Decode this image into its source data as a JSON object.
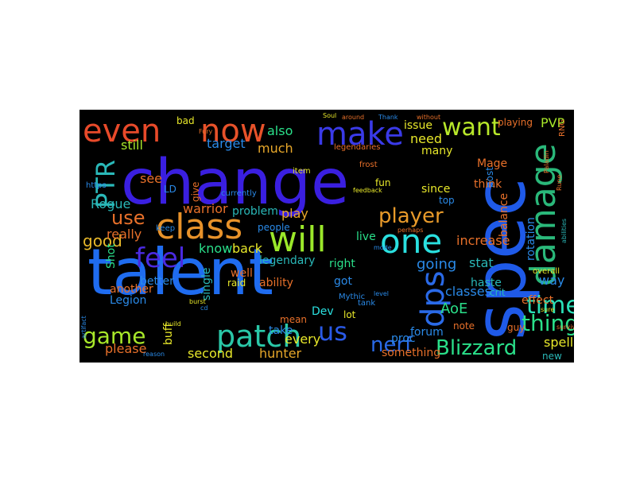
{
  "colors": {
    "canvas_background": "#000000",
    "page_background": "#ffffff"
  },
  "words": [
    {
      "text": "change",
      "color": "#3a1fe0"
    },
    {
      "text": "talent",
      "color": "#1f6cf0"
    },
    {
      "text": "spec",
      "color": "#1f5ae8"
    },
    {
      "text": "class",
      "color": "#e8922a"
    },
    {
      "text": "will",
      "color": "#9be82a"
    },
    {
      "text": "one",
      "color": "#2ae0e0"
    },
    {
      "text": "damage",
      "color": "#2ab87a"
    },
    {
      "text": "even",
      "color": "#e84a2a"
    },
    {
      "text": "now",
      "color": "#e8522a"
    },
    {
      "text": "make",
      "color": "#3a3ae8"
    },
    {
      "text": "patch",
      "color": "#2ac8a8"
    },
    {
      "text": "feel",
      "color": "#4a2ae0"
    },
    {
      "text": "dps",
      "color": "#2a6ae8"
    },
    {
      "text": "want",
      "color": "#b8e82a"
    },
    {
      "text": "player",
      "color": "#e89a2a"
    },
    {
      "text": "PTR",
      "color": "#2ab8b8"
    },
    {
      "text": "time",
      "color": "#2ae0b8"
    },
    {
      "text": "game",
      "color": "#a8e82a"
    },
    {
      "text": "us",
      "color": "#2a5ae8"
    },
    {
      "text": "thing",
      "color": "#2ae08a"
    },
    {
      "text": "Blizzard",
      "color": "#2ae08a"
    },
    {
      "text": "nerf",
      "color": "#2a6ae8"
    },
    {
      "text": "use",
      "color": "#e8702a"
    },
    {
      "text": "good",
      "color": "#e8b82a"
    },
    {
      "text": "PVP",
      "color": "#a8e82a"
    },
    {
      "text": "Rogue",
      "color": "#2ab8b8"
    },
    {
      "text": "warrior",
      "color": "#e8702a"
    },
    {
      "text": "play",
      "color": "#e8a82a"
    },
    {
      "text": "know",
      "color": "#2ae08a"
    },
    {
      "text": "back",
      "color": "#e8e82a"
    },
    {
      "text": "legendary",
      "color": "#2ab8b8"
    },
    {
      "text": "going",
      "color": "#2a8ae8"
    },
    {
      "text": "increase",
      "color": "#e8702a"
    },
    {
      "text": "rotation",
      "color": "#2a8ae8"
    },
    {
      "text": "stat",
      "color": "#2ab8b8"
    },
    {
      "text": "way",
      "color": "#2a8ae8"
    },
    {
      "text": "classes",
      "color": "#2a8ae8"
    },
    {
      "text": "AoE",
      "color": "#2ae08a"
    },
    {
      "text": "second",
      "color": "#e8e82a"
    },
    {
      "text": "hunter",
      "color": "#e8a82a"
    },
    {
      "text": "every",
      "color": "#e8e82a"
    },
    {
      "text": "forum",
      "color": "#2a8ae8"
    },
    {
      "text": "spell",
      "color": "#e8e82a"
    },
    {
      "text": "something",
      "color": "#e8702a"
    },
    {
      "text": "proc",
      "color": "#2a8ae8"
    },
    {
      "text": "buff",
      "color": "#e8e82a"
    },
    {
      "text": "please",
      "color": "#e8702a"
    },
    {
      "text": "also",
      "color": "#2ae08a"
    },
    {
      "text": "much",
      "color": "#e8a82a"
    },
    {
      "text": "target",
      "color": "#2a8ae8"
    },
    {
      "text": "still",
      "color": "#a8e82a"
    },
    {
      "text": "see",
      "color": "#e8702a"
    },
    {
      "text": "issue",
      "color": "#e8e82a"
    },
    {
      "text": "need",
      "color": "#e8e82a"
    },
    {
      "text": "many",
      "color": "#e8e82a"
    },
    {
      "text": "playing",
      "color": "#e8702a"
    },
    {
      "text": "Mage",
      "color": "#e8702a"
    },
    {
      "text": "post",
      "color": "#2a8ae8"
    },
    {
      "text": "balance",
      "color": "#e8702a"
    },
    {
      "text": "think",
      "color": "#e8702a"
    },
    {
      "text": "since",
      "color": "#e8e82a"
    },
    {
      "text": "top",
      "color": "#2a8ae8"
    },
    {
      "text": "really",
      "color": "#e8702a"
    },
    {
      "text": "Shot",
      "color": "#2ae08a"
    },
    {
      "text": "better",
      "color": "#2a8ae8"
    },
    {
      "text": "bad",
      "color": "#e8e82a"
    },
    {
      "text": "LD",
      "color": "#2a8ae8"
    },
    {
      "text": "give",
      "color": "#e8702a"
    },
    {
      "text": "problem",
      "color": "#2ab8b8"
    },
    {
      "text": "people",
      "color": "#2a8ae8"
    },
    {
      "text": "well",
      "color": "#e8702a"
    },
    {
      "text": "raid",
      "color": "#e8e82a"
    },
    {
      "text": "another",
      "color": "#e8702a"
    },
    {
      "text": "Legion",
      "color": "#2a8ae8"
    },
    {
      "text": "ability",
      "color": "#e8702a"
    },
    {
      "text": "single",
      "color": "#2ab8b8"
    },
    {
      "text": "take",
      "color": "#2a8ae8"
    },
    {
      "text": "mean",
      "color": "#e8702a"
    },
    {
      "text": "Dev",
      "color": "#2ae0e0"
    },
    {
      "text": "lot",
      "color": "#e8e82a"
    },
    {
      "text": "got",
      "color": "#2a8ae8"
    },
    {
      "text": "right",
      "color": "#2ae08a"
    },
    {
      "text": "live",
      "color": "#2ae08a"
    },
    {
      "text": "haste",
      "color": "#2ab8b8"
    },
    {
      "text": "crit",
      "color": "#2ab8b8"
    },
    {
      "text": "effect",
      "color": "#e8702a"
    },
    {
      "text": "guy",
      "color": "#e8702a"
    },
    {
      "text": "note",
      "color": "#e8702a"
    },
    {
      "text": "new",
      "color": "#2ab8b8"
    },
    {
      "text": "fun",
      "color": "#e8e82a"
    },
    {
      "text": "tank",
      "color": "#2a8ae8"
    },
    {
      "text": "Mythic",
      "color": "#2a8ae8"
    },
    {
      "text": "overall",
      "color": "#e8e82a"
    },
    {
      "text": "currently",
      "color": "#2a8ae8"
    },
    {
      "text": "https",
      "color": "#2a8ae8"
    },
    {
      "text": "level",
      "color": "#2a8ae8"
    },
    {
      "text": "item",
      "color": "#e8e82a"
    },
    {
      "text": "keep",
      "color": "#2a8ae8"
    },
    {
      "text": "legendaries",
      "color": "#e8702a"
    },
    {
      "text": "feedback",
      "color": "#e8e82a"
    },
    {
      "text": "frost",
      "color": "#e8702a"
    },
    {
      "text": "without",
      "color": "#e8702a"
    },
    {
      "text": "build",
      "color": "#e8e82a"
    },
    {
      "text": "perhaps",
      "color": "#e8702a"
    },
    {
      "text": "around",
      "color": "#e8702a"
    },
    {
      "text": "Thank",
      "color": "#2a8ae8"
    },
    {
      "text": "mode",
      "color": "#2a8ae8"
    },
    {
      "text": "artifact",
      "color": "#2a8ae8"
    },
    {
      "text": "Soul",
      "color": "#e8e82a"
    },
    {
      "text": "Paladin",
      "color": "#e8702a"
    },
    {
      "text": "RNG",
      "color": "#e8702a"
    },
    {
      "text": "Rune",
      "color": "#e8702a"
    },
    {
      "text": "abilities",
      "color": "#2ab8b8"
    },
    {
      "text": "burst",
      "color": "#e8e82a"
    },
    {
      "text": "cd",
      "color": "#2a8ae8"
    },
    {
      "text": "Fury",
      "color": "#e8702a"
    },
    {
      "text": "sure",
      "color": "#e8e82a"
    },
    {
      "text": "reason",
      "color": "#2a8ae8"
    },
    {
      "text": "survival",
      "color": "#e8702a"
    }
  ]
}
